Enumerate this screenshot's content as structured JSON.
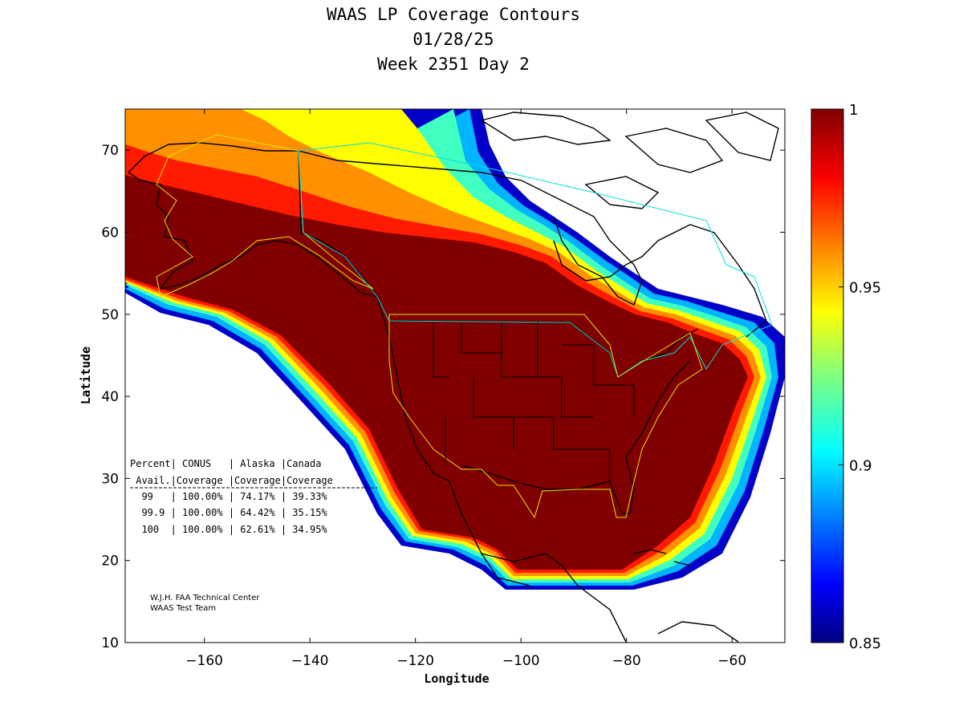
{
  "title": {
    "line1": "WAAS LP Coverage Contours",
    "line2": "01/28/25",
    "line3": "Week 2351 Day 2"
  },
  "axes": {
    "xlabel": "Longitude",
    "ylabel": "Latitude",
    "xlim": [
      -175,
      -50
    ],
    "ylim": [
      10,
      75
    ],
    "xticks": [
      -160,
      -140,
      -120,
      -100,
      -80,
      -60
    ],
    "yticks": [
      10,
      20,
      30,
      40,
      50,
      60,
      70
    ]
  },
  "colorbar": {
    "min": 0.85,
    "max": 1,
    "ticks": [
      "1",
      "0.95",
      "0.9",
      "0.85"
    ],
    "tick_values": [
      1,
      0.95,
      0.9,
      0.85
    ],
    "colormap": "jet"
  },
  "stats_table": {
    "header1": "Percent| CONUS   | Alaska |Canada",
    "header2": " Avail.|Coverage |Coverage|Coverage",
    "rows": [
      "  99   | 100.00% | 74.17% | 39.33%",
      "  99.9 | 100.00% | 64.42% | 35.15%",
      "  100  | 100.00% | 62.61% | 34.95%"
    ]
  },
  "credit": {
    "line1": "W.J.H. FAA Technical Center",
    "line2": "WAAS Test Team"
  },
  "colors": {
    "full_coverage": "#800000",
    "alaska_outline": "#e6e600",
    "canada_outline": "#00dddd"
  }
}
